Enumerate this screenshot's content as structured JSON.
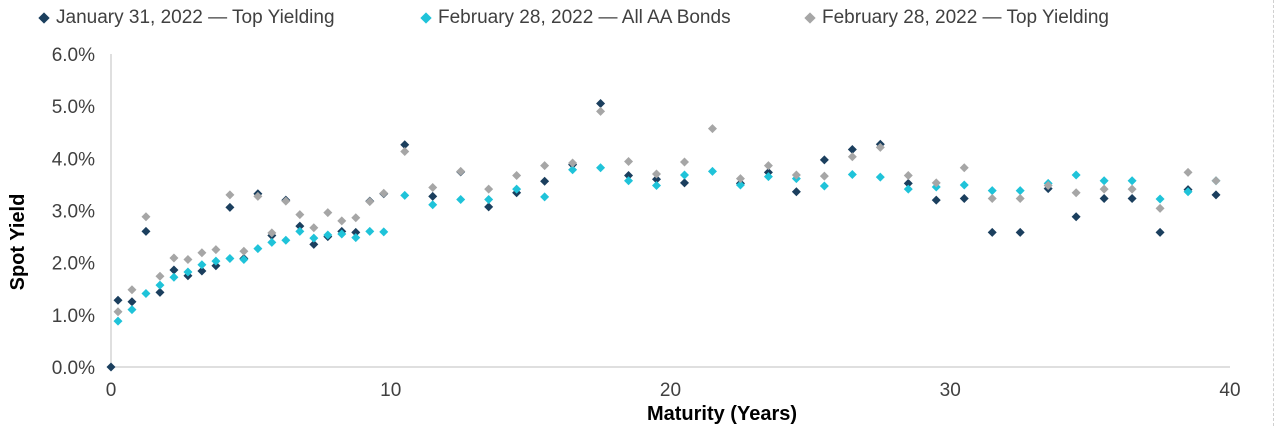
{
  "chart_data": {
    "type": "scatter",
    "title": "",
    "xlabel": "Maturity (Years)",
    "ylabel": "Spot Yield",
    "xlim": [
      0,
      40
    ],
    "ylim": [
      0,
      6
    ],
    "x_ticks": [
      "0",
      "10",
      "20",
      "30",
      "40"
    ],
    "y_ticks": [
      "0.0%",
      "1.0%",
      "2.0%",
      "3.0%",
      "4.0%",
      "5.0%",
      "6.0%"
    ],
    "grid": false,
    "legend_position": "top",
    "series": [
      {
        "name": "January 31, 2022 — Top Yielding",
        "color": "#1b3f5e",
        "points": [
          [
            0,
            0
          ],
          [
            0.25,
            1.28
          ],
          [
            0.75,
            1.25
          ],
          [
            1.25,
            2.6
          ],
          [
            1.75,
            1.43
          ],
          [
            2.25,
            1.86
          ],
          [
            2.75,
            1.75
          ],
          [
            3.25,
            1.84
          ],
          [
            3.75,
            1.94
          ],
          [
            4.25,
            3.06
          ],
          [
            4.75,
            2.08
          ],
          [
            5.25,
            3.32
          ],
          [
            5.75,
            2.52
          ],
          [
            6.25,
            3.2
          ],
          [
            6.75,
            2.7
          ],
          [
            7.25,
            2.35
          ],
          [
            7.75,
            2.5
          ],
          [
            8.25,
            2.6
          ],
          [
            8.75,
            2.58
          ],
          [
            9.25,
            3.18
          ],
          [
            9.75,
            3.32
          ],
          [
            10.5,
            4.26
          ],
          [
            11.5,
            3.27
          ],
          [
            12.5,
            3.74
          ],
          [
            13.5,
            3.07
          ],
          [
            14.5,
            3.34
          ],
          [
            15.5,
            3.56
          ],
          [
            16.5,
            3.88
          ],
          [
            17.5,
            5.05
          ],
          [
            18.5,
            3.67
          ],
          [
            19.5,
            3.6
          ],
          [
            20.5,
            3.53
          ],
          [
            22.5,
            3.52
          ],
          [
            23.5,
            3.73
          ],
          [
            24.5,
            3.36
          ],
          [
            25.5,
            3.97
          ],
          [
            26.5,
            4.17
          ],
          [
            27.5,
            4.27
          ],
          [
            28.5,
            3.52
          ],
          [
            29.5,
            3.2
          ],
          [
            30.5,
            3.23
          ],
          [
            31.5,
            2.58
          ],
          [
            32.5,
            2.58
          ],
          [
            33.5,
            3.42
          ],
          [
            34.5,
            2.88
          ],
          [
            35.5,
            3.23
          ],
          [
            36.5,
            3.23
          ],
          [
            37.5,
            2.58
          ],
          [
            38.5,
            3.4
          ],
          [
            39.5,
            3.3
          ]
        ]
      },
      {
        "name": "February 28, 2022 — All AA Bonds",
        "color": "#1fc3d9",
        "points": [
          [
            0.25,
            0.88
          ],
          [
            0.75,
            1.1
          ],
          [
            1.25,
            1.41
          ],
          [
            1.75,
            1.57
          ],
          [
            2.25,
            1.72
          ],
          [
            2.75,
            1.82
          ],
          [
            3.25,
            1.96
          ],
          [
            3.75,
            2.03
          ],
          [
            4.25,
            2.08
          ],
          [
            4.75,
            2.06
          ],
          [
            5.25,
            2.27
          ],
          [
            5.75,
            2.39
          ],
          [
            6.25,
            2.43
          ],
          [
            6.75,
            2.6
          ],
          [
            7.25,
            2.47
          ],
          [
            7.75,
            2.53
          ],
          [
            8.25,
            2.55
          ],
          [
            8.75,
            2.48
          ],
          [
            9.25,
            2.6
          ],
          [
            9.75,
            2.59
          ],
          [
            10.5,
            3.29
          ],
          [
            11.5,
            3.11
          ],
          [
            12.5,
            3.21
          ],
          [
            13.5,
            3.21
          ],
          [
            14.5,
            3.41
          ],
          [
            15.5,
            3.26
          ],
          [
            16.5,
            3.78
          ],
          [
            17.5,
            3.82
          ],
          [
            18.5,
            3.57
          ],
          [
            19.5,
            3.48
          ],
          [
            20.5,
            3.68
          ],
          [
            21.5,
            3.75
          ],
          [
            22.5,
            3.49
          ],
          [
            23.5,
            3.65
          ],
          [
            24.5,
            3.61
          ],
          [
            25.5,
            3.47
          ],
          [
            26.5,
            3.69
          ],
          [
            27.5,
            3.64
          ],
          [
            28.5,
            3.41
          ],
          [
            29.5,
            3.45
          ],
          [
            30.5,
            3.49
          ],
          [
            31.5,
            3.38
          ],
          [
            32.5,
            3.38
          ],
          [
            33.5,
            3.52
          ],
          [
            34.5,
            3.68
          ],
          [
            35.5,
            3.57
          ],
          [
            36.5,
            3.57
          ],
          [
            37.5,
            3.22
          ],
          [
            38.5,
            3.36
          ],
          [
            39.5,
            3.57
          ]
        ]
      },
      {
        "name": "February 28, 2022 — Top Yielding",
        "color": "#a6a6a6",
        "points": [
          [
            0.25,
            1.06
          ],
          [
            0.75,
            1.48
          ],
          [
            1.25,
            2.88
          ],
          [
            1.75,
            1.74
          ],
          [
            2.25,
            2.09
          ],
          [
            2.75,
            2.06
          ],
          [
            3.25,
            2.19
          ],
          [
            3.75,
            2.25
          ],
          [
            4.25,
            3.3
          ],
          [
            4.75,
            2.22
          ],
          [
            5.25,
            3.27
          ],
          [
            5.75,
            2.57
          ],
          [
            6.25,
            3.18
          ],
          [
            6.75,
            2.92
          ],
          [
            7.25,
            2.67
          ],
          [
            7.75,
            2.96
          ],
          [
            8.25,
            2.8
          ],
          [
            8.75,
            2.86
          ],
          [
            9.25,
            3.17
          ],
          [
            9.75,
            3.33
          ],
          [
            10.5,
            4.13
          ],
          [
            11.5,
            3.44
          ],
          [
            12.5,
            3.75
          ],
          [
            13.5,
            3.41
          ],
          [
            14.5,
            3.67
          ],
          [
            15.5,
            3.86
          ],
          [
            16.5,
            3.91
          ],
          [
            17.5,
            4.9
          ],
          [
            18.5,
            3.94
          ],
          [
            19.5,
            3.7
          ],
          [
            20.5,
            3.93
          ],
          [
            21.5,
            4.57
          ],
          [
            22.5,
            3.61
          ],
          [
            23.5,
            3.86
          ],
          [
            24.5,
            3.68
          ],
          [
            25.5,
            3.66
          ],
          [
            26.5,
            4.03
          ],
          [
            27.5,
            4.21
          ],
          [
            28.5,
            3.67
          ],
          [
            29.5,
            3.53
          ],
          [
            30.5,
            3.82
          ],
          [
            31.5,
            3.23
          ],
          [
            32.5,
            3.23
          ],
          [
            33.5,
            3.48
          ],
          [
            34.5,
            3.34
          ],
          [
            35.5,
            3.41
          ],
          [
            36.5,
            3.41
          ],
          [
            37.5,
            3.04
          ],
          [
            38.5,
            3.73
          ],
          [
            39.5,
            3.57
          ]
        ]
      }
    ]
  }
}
